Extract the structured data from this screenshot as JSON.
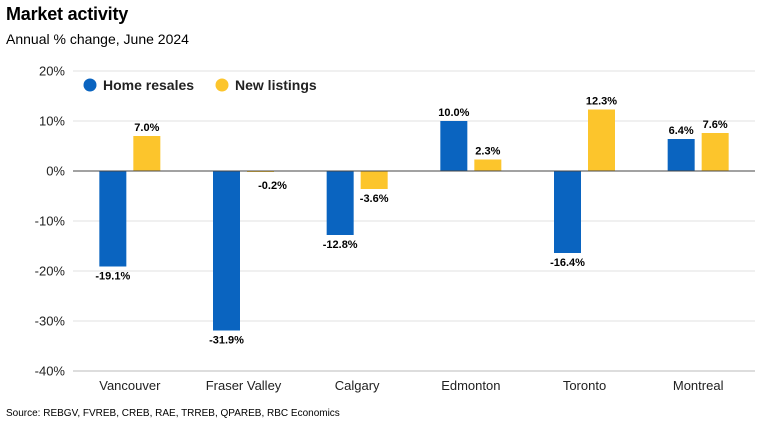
{
  "header": {
    "title": "Market activity",
    "subtitle": "Annual % change, June 2024"
  },
  "footer": {
    "source": "Source: REBGV, FVREB, CREB, RAE, TRREB, QPAREB, RBC Economics"
  },
  "chart_data": {
    "type": "bar",
    "title": "Market activity",
    "subtitle": "Annual % change, June 2024",
    "categories": [
      "Vancouver",
      "Fraser Valley",
      "Calgary",
      "Edmonton",
      "Toronto",
      "Montreal"
    ],
    "series": [
      {
        "name": "Home resales",
        "color": "#0a64c0",
        "values": [
          -19.1,
          -31.9,
          -12.8,
          10.0,
          -16.4,
          6.4
        ],
        "labels": [
          "-19.1%",
          "-31.9%",
          "-12.8%",
          "10.0%",
          "-16.4%",
          "6.4%"
        ]
      },
      {
        "name": "New listings",
        "color": "#fcc52c",
        "values": [
          7.0,
          -0.2,
          -3.6,
          2.3,
          12.3,
          7.6
        ],
        "labels": [
          "7.0%",
          "-0.2%",
          "-3.6%",
          "2.3%",
          "12.3%",
          "7.6%"
        ]
      }
    ],
    "y_ticks": [
      20,
      10,
      0,
      -10,
      -20,
      -30,
      -40
    ],
    "y_tick_labels": [
      "20%",
      "10%",
      "0%",
      "-10%",
      "-20%",
      "-30%",
      "-40%"
    ],
    "ylim": [
      -40,
      20
    ],
    "grid": true,
    "legend_position": "top-left",
    "xlabel": "",
    "ylabel": ""
  }
}
